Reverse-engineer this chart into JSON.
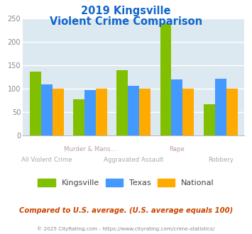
{
  "title_line1": "2019 Kingsville",
  "title_line2": "Violent Crime Comparison",
  "categories": [
    "All Violent Crime",
    "Murder & Mans...",
    "Aggravated Assault",
    "Rape",
    "Robbery"
  ],
  "top_labels": [
    "",
    "Murder & Mans...",
    "",
    "Rape",
    ""
  ],
  "bottom_labels": [
    "All Violent Crime",
    "",
    "Aggravated Assault",
    "",
    "Robbery"
  ],
  "kingsville": [
    137,
    78,
    140,
    240,
    68
  ],
  "texas": [
    110,
    97,
    106,
    121,
    122
  ],
  "national": [
    100,
    100,
    100,
    100,
    100
  ],
  "kingsville_color": "#80C000",
  "texas_color": "#4499FF",
  "national_color": "#FFAA00",
  "ylim": [
    0,
    250
  ],
  "yticks": [
    0,
    50,
    100,
    150,
    200,
    250
  ],
  "background_color": "#DDE9F0",
  "grid_color": "#FFFFFF",
  "title_color": "#1166CC",
  "xlabel_color_top": "#BB99AA",
  "xlabel_color_bot": "#AAAAAA",
  "legend_label_color": "#444444",
  "footer_text": "Compared to U.S. average. (U.S. average equals 100)",
  "footer_color": "#CC4400",
  "copyright_text": "© 2025 CityRating.com - https://www.cityrating.com/crime-statistics/",
  "copyright_color": "#888888"
}
